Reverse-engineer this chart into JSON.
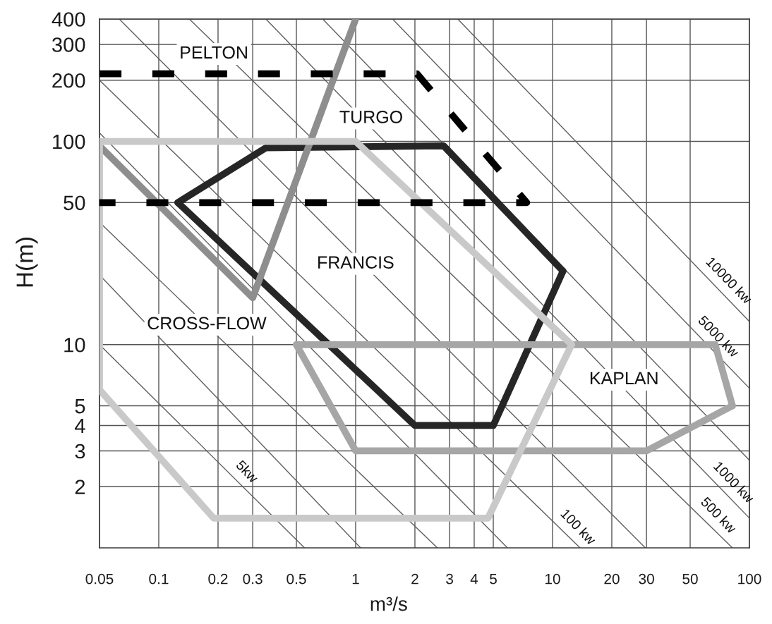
{
  "chart_data": {
    "type": "line",
    "xlabel": "m³/s",
    "ylabel": "H(m)",
    "log": "xy",
    "xlim": [
      0.05,
      100
    ],
    "ylim": [
      1,
      400
    ],
    "xticks": [
      0.05,
      0.1,
      0.2,
      0.3,
      0.5,
      1,
      2,
      3,
      4,
      5,
      10,
      20,
      30,
      50,
      100
    ],
    "yticks": [
      2,
      3,
      4,
      5,
      10,
      50,
      100,
      200,
      300,
      400
    ],
    "grid": true,
    "line_style": "solid",
    "series": [
      {
        "color": "#262626",
        "x": [
          0.125,
          0.35,
          2.8,
          11.3
        ],
        "values": [
          50,
          93,
          95,
          23
        ]
      },
      {
        "color": "#262626",
        "x": [
          0.125,
          2,
          5,
          11.3
        ],
        "values": [
          50,
          4,
          4,
          23
        ]
      },
      {
        "color": "#8e8e8e",
        "x": [
          0.05,
          0.3,
          1
        ],
        "values": [
          95,
          17,
          400
        ]
      },
      {
        "color": "#a6a6a6",
        "x": [
          0.5,
          67,
          82
        ],
        "values": [
          10,
          10,
          5
        ]
      },
      {
        "color": "#a6a6a6",
        "x": [
          0.5,
          1,
          30,
          82
        ],
        "values": [
          10,
          3,
          3,
          5
        ]
      },
      {
        "color": "#c9c9c9",
        "x": [
          0.05,
          1,
          12.5
        ],
        "values": [
          100,
          100,
          10
        ]
      },
      {
        "color": "#c9c9c9",
        "x": [
          0.05,
          0.05,
          0.19,
          4.7,
          12.5
        ],
        "values": [
          100,
          6,
          1.4,
          1.4,
          10
        ]
      },
      {
        "color": "#000000",
        "line_style": "dashed",
        "x": [
          0.05,
          2.05,
          7.4,
          0.05
        ],
        "values": [
          215,
          215,
          50,
          50
        ]
      },
      {
        "color": "#5e5e5e",
        "x": [
          0.05,
          0.55
        ],
        "values": [
          10,
          1
        ]
      },
      {
        "color": "#5e5e5e",
        "x": [
          0.05,
          1.06
        ],
        "values": [
          22,
          1
        ]
      },
      {
        "color": "#5e5e5e",
        "x": [
          0.05,
          2.6
        ],
        "values": [
          40,
          1
        ]
      },
      {
        "color": "#5e5e5e",
        "x": [
          0.05,
          5.9
        ],
        "values": [
          110,
          1
        ]
      },
      {
        "color": "#5e5e5e",
        "x": [
          0.05,
          13.8
        ],
        "values": [
          200,
          1
        ]
      },
      {
        "color": "#5e5e5e",
        "x": [
          0.063,
          29.6
        ],
        "values": [
          400,
          1
        ]
      },
      {
        "color": "#5e5e5e",
        "x": [
          0.143,
          82
        ],
        "values": [
          400,
          1
        ]
      },
      {
        "color": "#5e5e5e",
        "x": [
          0.35,
          100
        ],
        "values": [
          400,
          1.4
        ]
      },
      {
        "color": "#5e5e5e",
        "x": [
          0.68,
          100
        ],
        "values": [
          400,
          2.7
        ]
      },
      {
        "color": "#5e5e5e",
        "x": [
          1.54,
          100
        ],
        "values": [
          400,
          6.1
        ]
      },
      {
        "color": "#5e5e5e",
        "x": [
          3.3,
          100
        ],
        "values": [
          400,
          13
        ]
      }
    ],
    "annotations": [
      "PELTON",
      "TURGO",
      "FRANCIS",
      "CROSS-FLOW",
      "KAPLAN",
      {
        "text": "5kw",
        "x": 0.25,
        "y": 2.13
      },
      {
        "text": "100 kw",
        "x": 12,
        "y": 1.14
      },
      {
        "text": "500 kw",
        "x": 62,
        "y": 1.3
      },
      {
        "text": "1000 kw",
        "x": 74,
        "y": 1.89
      },
      {
        "text": "5000 kw",
        "x": 62,
        "y": 9.85
      },
      {
        "text": "10000 kw",
        "x": 70,
        "y": 18.6
      }
    ]
  }
}
